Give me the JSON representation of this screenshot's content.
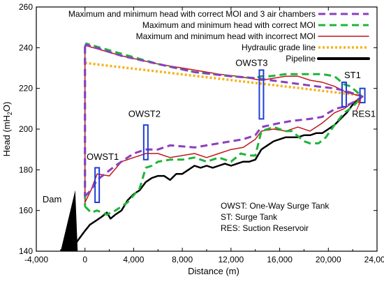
{
  "chart_data": {
    "type": "line",
    "xlabel": "Distance (m)",
    "ylabel_main": "Head (mH",
    "ylabel_sub": "2",
    "ylabel_tail": "O)",
    "xlim": [
      -4000,
      24000
    ],
    "ylim": [
      140,
      260
    ],
    "x_ticks": [
      -4000,
      0,
      4000,
      8000,
      12000,
      16000,
      20000,
      24000
    ],
    "x_tick_labels": [
      "-4,000",
      "0",
      "4,000",
      "8,000",
      "12,000",
      "16,000",
      "20,000",
      "24,000"
    ],
    "y_ticks": [
      140,
      160,
      180,
      200,
      220,
      240,
      260
    ],
    "y_tick_labels": [
      "140",
      "160",
      "180",
      "200",
      "220",
      "240",
      "260"
    ],
    "legend_position": "top-right",
    "series": [
      {
        "name": "Maximum and minimum head with correct MOI and 3 air chambers",
        "color": "#8a3fc0",
        "style": "dashed",
        "max": [
          [
            0,
            240.5
          ],
          [
            100,
            241.5
          ],
          [
            3000,
            236
          ],
          [
            6000,
            232
          ],
          [
            9000,
            228
          ],
          [
            12000,
            226
          ],
          [
            14000,
            225
          ],
          [
            16500,
            223
          ],
          [
            19000,
            221
          ],
          [
            20500,
            220
          ],
          [
            21300,
            219
          ],
          [
            22800,
            216
          ]
        ],
        "min": [
          [
            0,
            167
          ],
          [
            500,
            170
          ],
          [
            1000,
            175
          ],
          [
            2500,
            182
          ],
          [
            4000,
            188
          ],
          [
            5000,
            190
          ],
          [
            6000,
            190
          ],
          [
            7000,
            192
          ],
          [
            9000,
            191
          ],
          [
            11000,
            193
          ],
          [
            13000,
            195
          ],
          [
            14000,
            197
          ],
          [
            14500,
            201
          ],
          [
            16000,
            203
          ],
          [
            17000,
            204
          ],
          [
            18500,
            205
          ],
          [
            19500,
            206
          ],
          [
            20000,
            208
          ],
          [
            20600,
            210
          ],
          [
            21300,
            211
          ],
          [
            22000,
            213
          ],
          [
            22800,
            216
          ]
        ]
      },
      {
        "name": "Maximum and minimum head with correct MOI",
        "color": "#1db53a",
        "style": "dashed",
        "max": [
          [
            0,
            240.5
          ],
          [
            100,
            242
          ],
          [
            3000,
            237
          ],
          [
            6000,
            232
          ],
          [
            9000,
            228
          ],
          [
            12000,
            226
          ],
          [
            14000,
            225
          ],
          [
            14500,
            226
          ],
          [
            15200,
            226
          ],
          [
            16500,
            227
          ],
          [
            17000,
            227
          ],
          [
            19500,
            227
          ],
          [
            20500,
            226
          ],
          [
            21300,
            222
          ],
          [
            21800,
            221
          ],
          [
            22800,
            216
          ]
        ],
        "min": [
          [
            0,
            162
          ],
          [
            500,
            159
          ],
          [
            1000,
            160
          ],
          [
            1800,
            158
          ],
          [
            2500,
            160
          ],
          [
            3500,
            164
          ],
          [
            4500,
            171
          ],
          [
            5000,
            181
          ],
          [
            5500,
            182
          ],
          [
            6000,
            184
          ],
          [
            7000,
            185
          ],
          [
            8000,
            185
          ],
          [
            9000,
            186
          ],
          [
            10000,
            184
          ],
          [
            11000,
            186
          ],
          [
            12000,
            184
          ],
          [
            12800,
            188
          ],
          [
            13500,
            187
          ],
          [
            14000,
            187
          ],
          [
            14500,
            199
          ],
          [
            15500,
            201
          ],
          [
            16500,
            199
          ],
          [
            17000,
            199
          ],
          [
            18000,
            194
          ],
          [
            18500,
            193
          ],
          [
            19200,
            193
          ],
          [
            19800,
            196
          ],
          [
            20500,
            202
          ],
          [
            21300,
            208
          ],
          [
            22000,
            211
          ],
          [
            22800,
            216
          ]
        ]
      },
      {
        "name": "Maximum and minimum head with incorrect MOI",
        "color": "#c0171c",
        "style": "solid",
        "max": [
          [
            0,
            240
          ],
          [
            100,
            241
          ],
          [
            3000,
            236
          ],
          [
            6000,
            232
          ],
          [
            9000,
            229
          ],
          [
            11000,
            227
          ],
          [
            12500,
            226
          ],
          [
            13500,
            225
          ],
          [
            14500,
            224
          ],
          [
            15500,
            225
          ],
          [
            16500,
            226
          ],
          [
            17500,
            226
          ],
          [
            18500,
            224
          ],
          [
            19500,
            223
          ],
          [
            20500,
            221
          ],
          [
            21500,
            218
          ],
          [
            22800,
            216
          ]
        ],
        "min": [
          [
            0,
            164
          ],
          [
            500,
            170
          ],
          [
            1000,
            178
          ],
          [
            2000,
            177
          ],
          [
            3000,
            184
          ],
          [
            4000,
            186
          ],
          [
            5000,
            188
          ],
          [
            6000,
            188
          ],
          [
            7000,
            186
          ],
          [
            8000,
            187
          ],
          [
            9000,
            188
          ],
          [
            10000,
            186
          ],
          [
            11000,
            188
          ],
          [
            12000,
            190
          ],
          [
            13000,
            191
          ],
          [
            14000,
            195
          ],
          [
            14500,
            199
          ],
          [
            15500,
            200
          ],
          [
            16500,
            199
          ],
          [
            17500,
            201
          ],
          [
            18500,
            199
          ],
          [
            19500,
            203
          ],
          [
            20500,
            208
          ],
          [
            21300,
            210
          ],
          [
            22000,
            213
          ],
          [
            22800,
            216
          ]
        ]
      },
      {
        "name": "Hydraulic grade line",
        "color": "#f6b21a",
        "style": "dotted",
        "points": [
          [
            0,
            232.5
          ],
          [
            22800,
            216.5
          ]
        ]
      },
      {
        "name": "Pipeline",
        "color": "#000000",
        "style": "solid",
        "points": [
          [
            -1500,
            138
          ],
          [
            -1000,
            142
          ],
          [
            -500,
            146
          ],
          [
            0,
            150
          ],
          [
            400,
            153
          ],
          [
            900,
            155
          ],
          [
            1400,
            157
          ],
          [
            1800,
            159
          ],
          [
            2100,
            156
          ],
          [
            2500,
            158
          ],
          [
            3000,
            160
          ],
          [
            3500,
            165
          ],
          [
            4000,
            168
          ],
          [
            4500,
            170
          ],
          [
            5000,
            174
          ],
          [
            5500,
            176
          ],
          [
            6000,
            177
          ],
          [
            6500,
            177
          ],
          [
            7000,
            175
          ],
          [
            7500,
            178
          ],
          [
            8000,
            178
          ],
          [
            8500,
            180
          ],
          [
            9000,
            182
          ],
          [
            9500,
            181
          ],
          [
            10000,
            182
          ],
          [
            10500,
            181
          ],
          [
            11000,
            182
          ],
          [
            11500,
            183
          ],
          [
            12000,
            182
          ],
          [
            12500,
            183
          ],
          [
            13000,
            184
          ],
          [
            13500,
            184
          ],
          [
            14000,
            185
          ],
          [
            14500,
            190
          ],
          [
            15000,
            192
          ],
          [
            15500,
            194
          ],
          [
            16000,
            195
          ],
          [
            16500,
            196
          ],
          [
            17000,
            196
          ],
          [
            17500,
            196
          ],
          [
            18000,
            197
          ],
          [
            18500,
            197
          ],
          [
            19000,
            198
          ],
          [
            19500,
            198
          ],
          [
            20000,
            200
          ],
          [
            20500,
            202
          ],
          [
            21000,
            205
          ],
          [
            21500,
            208
          ],
          [
            22000,
            212
          ],
          [
            22800,
            216
          ]
        ]
      }
    ],
    "structures": [
      {
        "label": "OWST1",
        "x": 1000,
        "y_bottom": 164,
        "y_top": 181
      },
      {
        "label": "OWST2",
        "x": 5000,
        "y_bottom": 185,
        "y_top": 202
      },
      {
        "label": "OWST3",
        "x": 14500,
        "y_bottom": 205,
        "y_top": 229
      },
      {
        "label": "ST1",
        "x": 21300,
        "y_bottom": 211,
        "y_top": 223
      },
      {
        "label": "RES1",
        "x": 22800,
        "y_bottom": 213,
        "y_top": 220
      }
    ],
    "dam_label": "Dam",
    "notes": [
      "OWST: One-Way Surge Tank",
      "ST: Surge Tank",
      "RES: Suction Reservoir"
    ]
  }
}
